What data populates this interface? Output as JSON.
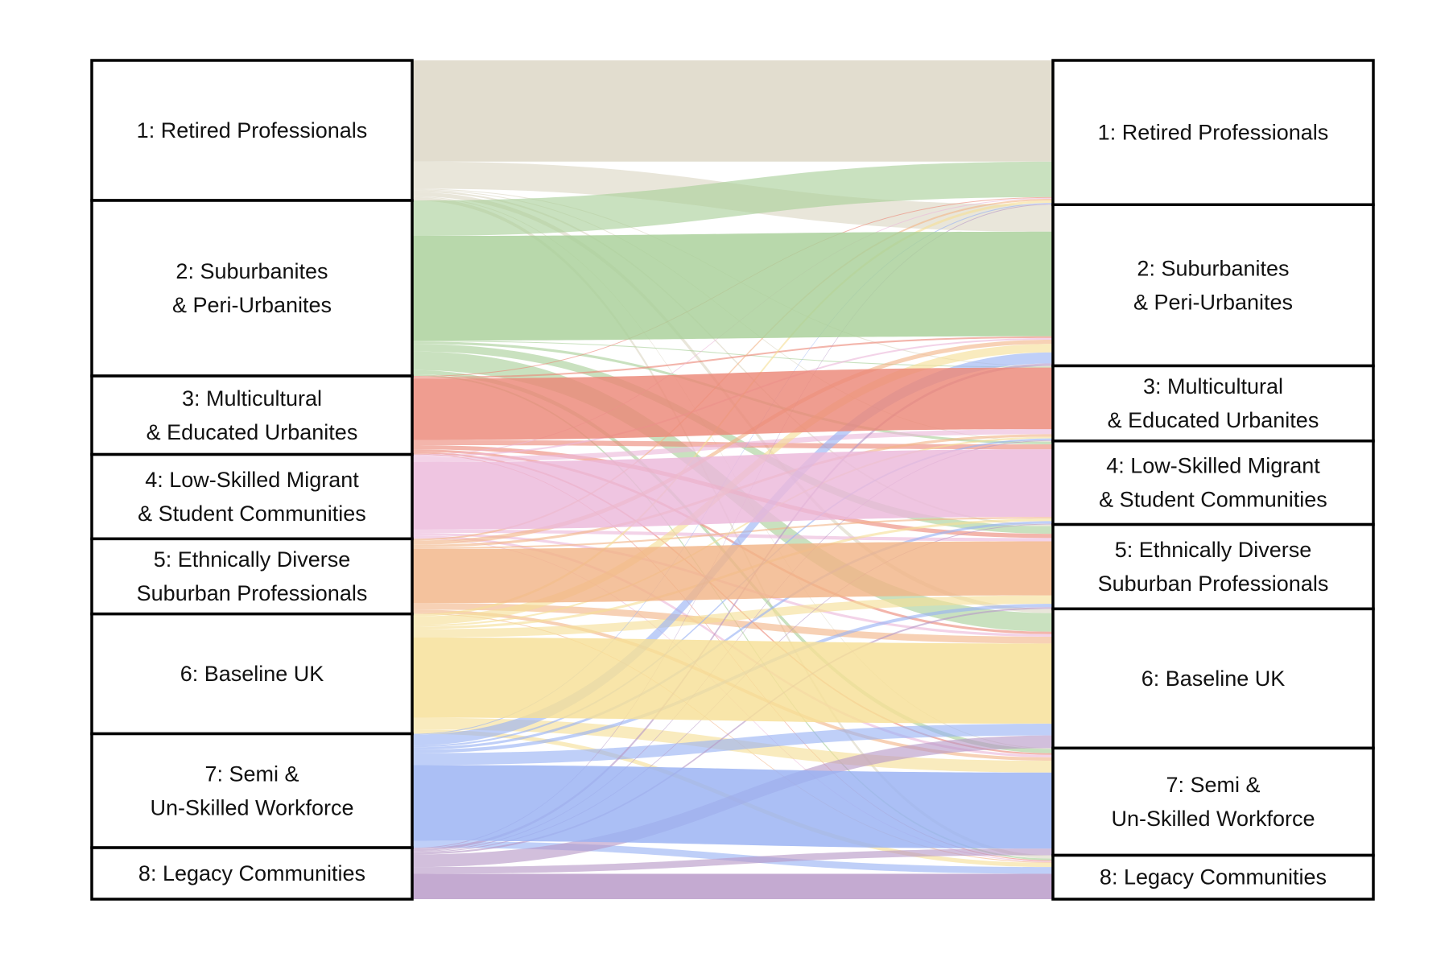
{
  "chart_data": {
    "type": "alluvial",
    "title": "",
    "categories": [
      {
        "id": 1,
        "lines": [
          "1: Retired Professionals"
        ],
        "color": "#dcd6c4"
      },
      {
        "id": 2,
        "lines": [
          "2: Suburbanites",
          "& Peri-Urbanites"
        ],
        "color": "#a8cf98"
      },
      {
        "id": 3,
        "lines": [
          "3: Multicultural",
          "& Educated Urbanites"
        ],
        "color": "#ec8878"
      },
      {
        "id": 4,
        "lines": [
          "4: Low-Skilled Migrant",
          "& Student Communities"
        ],
        "color": "#ecb8da"
      },
      {
        "id": 5,
        "lines": [
          "5: Ethnically Diverse",
          "Suburban Professionals"
        ],
        "color": "#f2b487"
      },
      {
        "id": 6,
        "lines": [
          "6: Baseline UK"
        ],
        "color": "#f6df96"
      },
      {
        "id": 7,
        "lines": [
          "7: Semi &",
          "Un-Skilled Workforce"
        ],
        "color": "#98b1f3"
      },
      {
        "id": 8,
        "lines": [
          "8: Legacy Communities"
        ],
        "color": "#b797c7"
      }
    ],
    "flows": [
      {
        "from": 1,
        "to": 1,
        "value": 12.0
      },
      {
        "from": 1,
        "to": 2,
        "value": 3.2
      },
      {
        "from": 1,
        "to": 3,
        "value": 0.1
      },
      {
        "from": 1,
        "to": 4,
        "value": 0.1
      },
      {
        "from": 1,
        "to": 5,
        "value": 0.2
      },
      {
        "from": 1,
        "to": 6,
        "value": 0.5
      },
      {
        "from": 1,
        "to": 7,
        "value": 0.1
      },
      {
        "from": 1,
        "to": 8,
        "value": 0.4
      },
      {
        "from": 2,
        "to": 1,
        "value": 4.2
      },
      {
        "from": 2,
        "to": 2,
        "value": 12.4
      },
      {
        "from": 2,
        "to": 3,
        "value": 0.1
      },
      {
        "from": 2,
        "to": 4,
        "value": 0.3
      },
      {
        "from": 2,
        "to": 5,
        "value": 0.9
      },
      {
        "from": 2,
        "to": 6,
        "value": 2.2
      },
      {
        "from": 2,
        "to": 7,
        "value": 0.5
      },
      {
        "from": 2,
        "to": 8,
        "value": 0.2
      },
      {
        "from": 3,
        "to": 1,
        "value": 0.1
      },
      {
        "from": 3,
        "to": 2,
        "value": 0.2
      },
      {
        "from": 3,
        "to": 3,
        "value": 7.3
      },
      {
        "from": 3,
        "to": 4,
        "value": 0.6
      },
      {
        "from": 3,
        "to": 5,
        "value": 0.5
      },
      {
        "from": 3,
        "to": 6,
        "value": 0.3
      },
      {
        "from": 3,
        "to": 7,
        "value": 0.2
      },
      {
        "from": 3,
        "to": 8,
        "value": 0.1
      },
      {
        "from": 4,
        "to": 1,
        "value": 0.1
      },
      {
        "from": 4,
        "to": 2,
        "value": 0.2
      },
      {
        "from": 4,
        "to": 3,
        "value": 0.6
      },
      {
        "from": 4,
        "to": 4,
        "value": 8.0
      },
      {
        "from": 4,
        "to": 5,
        "value": 0.4
      },
      {
        "from": 4,
        "to": 6,
        "value": 0.3
      },
      {
        "from": 4,
        "to": 7,
        "value": 0.3
      },
      {
        "from": 4,
        "to": 8,
        "value": 0.1
      },
      {
        "from": 5,
        "to": 1,
        "value": 0.2
      },
      {
        "from": 5,
        "to": 2,
        "value": 0.5
      },
      {
        "from": 5,
        "to": 3,
        "value": 0.3
      },
      {
        "from": 5,
        "to": 4,
        "value": 0.2
      },
      {
        "from": 5,
        "to": 5,
        "value": 6.4
      },
      {
        "from": 5,
        "to": 6,
        "value": 0.8
      },
      {
        "from": 5,
        "to": 7,
        "value": 0.4
      },
      {
        "from": 5,
        "to": 8,
        "value": 0.1
      },
      {
        "from": 6,
        "to": 1,
        "value": 0.3
      },
      {
        "from": 6,
        "to": 2,
        "value": 1.0
      },
      {
        "from": 6,
        "to": 3,
        "value": 0.2
      },
      {
        "from": 6,
        "to": 4,
        "value": 0.3
      },
      {
        "from": 6,
        "to": 5,
        "value": 1.0
      },
      {
        "from": 6,
        "to": 6,
        "value": 9.5
      },
      {
        "from": 6,
        "to": 7,
        "value": 1.4
      },
      {
        "from": 6,
        "to": 8,
        "value": 0.5
      },
      {
        "from": 7,
        "to": 1,
        "value": 0.1
      },
      {
        "from": 7,
        "to": 2,
        "value": 1.3
      },
      {
        "from": 7,
        "to": 3,
        "value": 0.2
      },
      {
        "from": 7,
        "to": 4,
        "value": 0.3
      },
      {
        "from": 7,
        "to": 5,
        "value": 0.4
      },
      {
        "from": 7,
        "to": 6,
        "value": 1.4
      },
      {
        "from": 7,
        "to": 7,
        "value": 9.0
      },
      {
        "from": 7,
        "to": 8,
        "value": 0.8
      },
      {
        "from": 8,
        "to": 1,
        "value": 0.1
      },
      {
        "from": 8,
        "to": 2,
        "value": 0.3
      },
      {
        "from": 8,
        "to": 3,
        "value": 0.1
      },
      {
        "from": 8,
        "to": 4,
        "value": 0.1
      },
      {
        "from": 8,
        "to": 5,
        "value": 0.2
      },
      {
        "from": 8,
        "to": 6,
        "value": 1.5
      },
      {
        "from": 8,
        "to": 7,
        "value": 0.8
      },
      {
        "from": 8,
        "to": 8,
        "value": 3.0
      }
    ]
  }
}
